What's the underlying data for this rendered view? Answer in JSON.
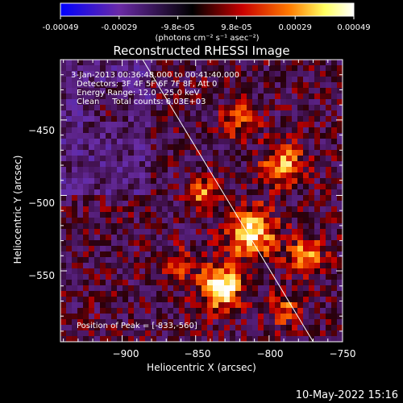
{
  "colorbar": {
    "tick_labels": [
      "-0.00049",
      "-0.00029",
      "-9.8e-05",
      "9.8e-05",
      "0.00029",
      "0.00049"
    ],
    "unit_label": "(photons cm⁻² s⁻¹ asec⁻²)",
    "range": [
      -0.00049,
      0.00049
    ],
    "colors": [
      "#0000ff",
      "#6a2aa6",
      "#000000",
      "#c80000",
      "#ff7a00",
      "#ffff60",
      "#ffffff"
    ]
  },
  "chart_data": {
    "type": "heatmap",
    "title": "Reconstructed RHESSI Image",
    "xlabel": "Heliocentric X (arcsec)",
    "ylabel": "Heliocentric Y (arcsec)",
    "xlim": [
      -942,
      -750
    ],
    "ylim": [
      -597,
      -410
    ],
    "x_ticks": [
      -900,
      -850,
      -800,
      -750
    ],
    "x_tick_labels": [
      "−900",
      "−850",
      "−800",
      "−750"
    ],
    "y_ticks": [
      -450,
      -500,
      -550
    ],
    "y_tick_labels": [
      "−450",
      "−500",
      "−550"
    ],
    "annotations": [
      "3-Jan-2013 00:36:48.000 to 00:41:40.000",
      "Detectors: 3F 4F 5F 6F 7F 8F, Att 0",
      "Energy Range: 12.0 - 25.0 keV",
      "Clean     Total counts: 6.03E+03"
    ],
    "peak_label": "Position of Peak = [-833,-560]",
    "peak": [
      -833,
      -560
    ],
    "limb_line": [
      [
        -886,
        -410
      ],
      [
        -770,
        -597
      ]
    ],
    "grid": false,
    "legend": "none"
  },
  "footer": {
    "timestamp": "10-May-2022 15:16"
  }
}
